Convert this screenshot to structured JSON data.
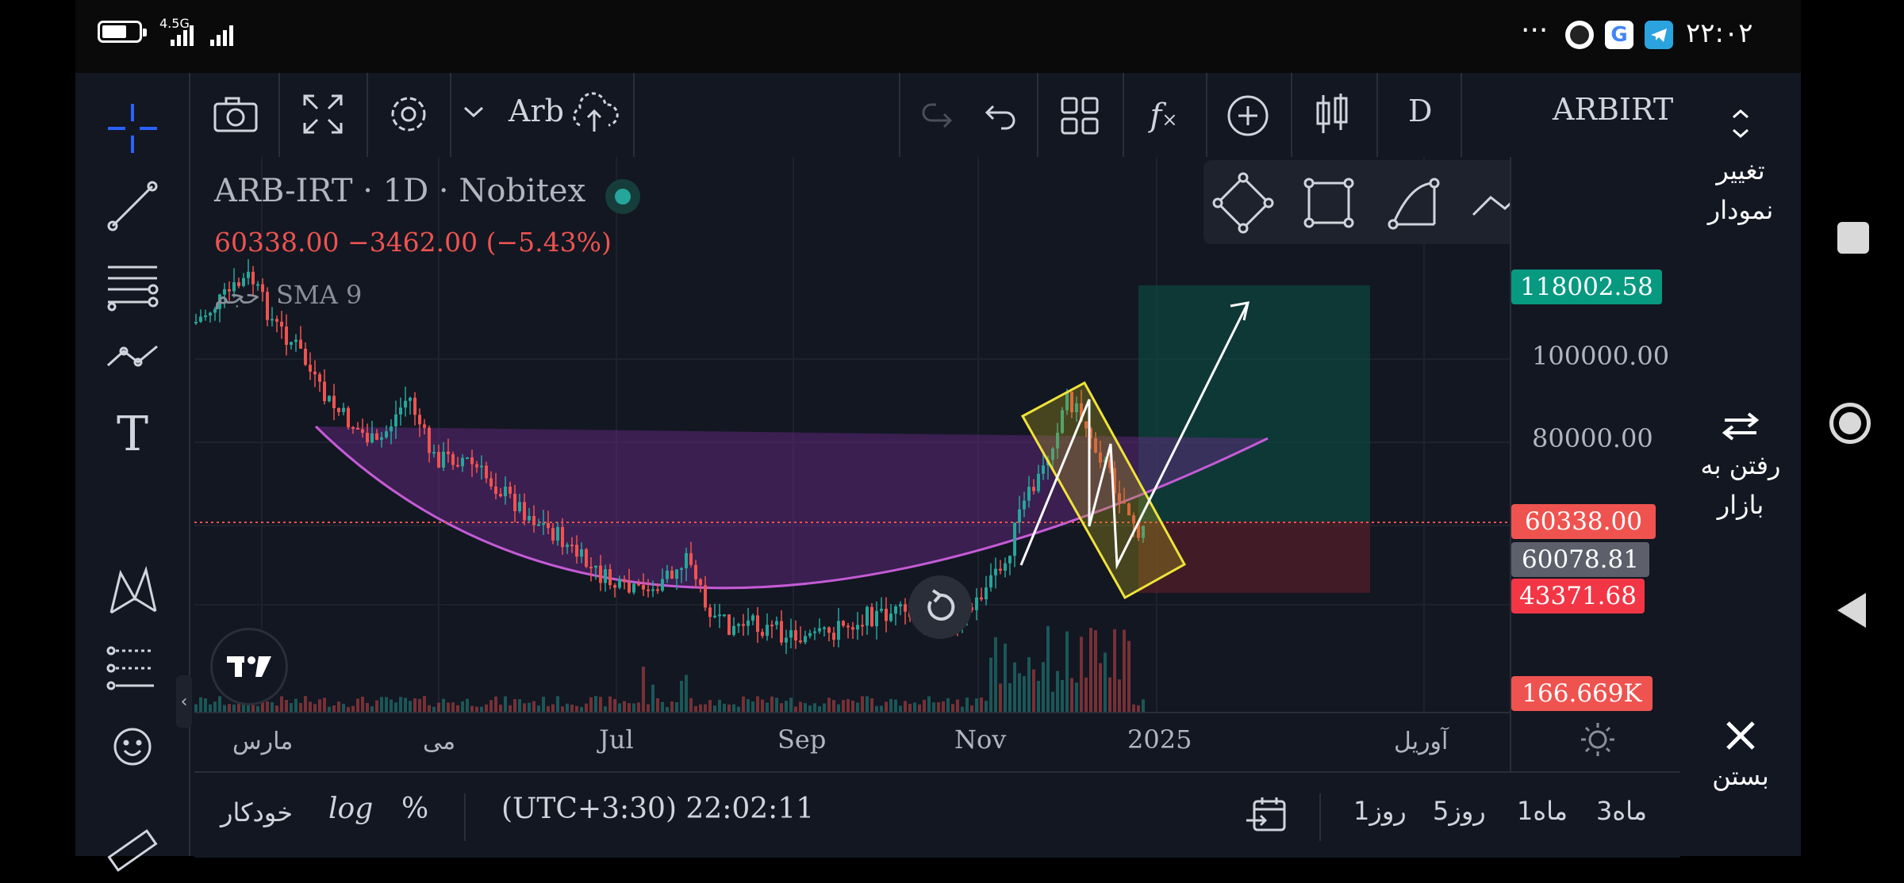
{
  "status": {
    "network": "4.5G",
    "time": "۲۲:۰۲",
    "dots": "···"
  },
  "toolbar": {
    "layout_name": "Arb",
    "timeframe": "D",
    "symbol_short": "ARBIRT"
  },
  "legend": {
    "title": "ARB-IRT · 1D · Nobitex",
    "price": "60338.00",
    "change": "−3462.00 (−5.43%)",
    "indicator_persian": "حجم",
    "indicator": "SMA 9"
  },
  "price_axis": {
    "labels": [
      "100000.00",
      "80000.00"
    ],
    "badges": {
      "target": "118002.58",
      "current": "60338.00",
      "gray": "60078.81",
      "stop": "43371.68",
      "volume": "166.669K"
    }
  },
  "time_axis": {
    "labels": [
      "مارس",
      "می",
      "Jul",
      "Sep",
      "Nov",
      "2025",
      "آوریل"
    ]
  },
  "bottom": {
    "auto": "خودکار",
    "log": "log",
    "percent": "%",
    "clock": "(UTC+3:30) 22:02:11",
    "ranges": [
      "1روز",
      "5روز",
      "1ماه",
      "3ماه"
    ]
  },
  "right_panel": {
    "change_chart": "تغییر نمودار",
    "go_market": "رفتن به بازار",
    "close": "بستن"
  },
  "colors": {
    "up": "#26a69a",
    "down": "#ef5350",
    "bg": "#131722",
    "accent": "#2962ff"
  },
  "icons": {
    "left": [
      "crosshair-icon",
      "trend-line-icon",
      "fib-icon",
      "patterns-icon",
      "text-icon",
      "xabcd-icon",
      "measure-tools-icon",
      "emoji-icon",
      "ruler-icon"
    ],
    "drawing_palette": [
      "rotated-rectangle-icon",
      "rectangle-icon",
      "arc-icon",
      "path-icon",
      "curve-icon",
      "drag-handle-icon"
    ]
  }
}
